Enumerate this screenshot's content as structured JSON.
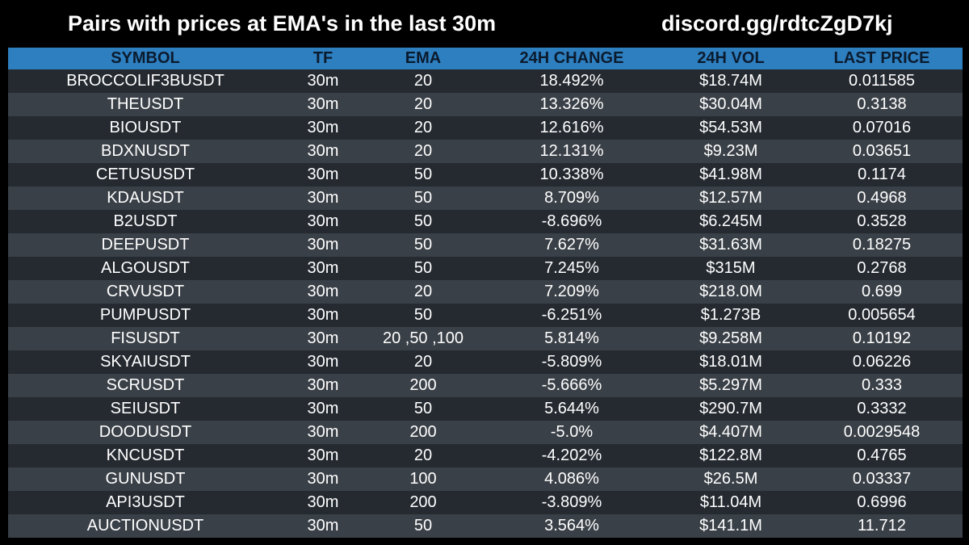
{
  "header": {
    "title": "Pairs with prices at EMA's in the last 30m",
    "discord": "discord.gg/rdtcZgD7kj"
  },
  "colors": {
    "background": "#000000",
    "header_row": "#2e7fc0",
    "row_dark": "#252a31",
    "row_light": "#3a4047",
    "text": "#ffffff"
  },
  "table": {
    "columns": [
      "SYMBOL",
      "TF",
      "EMA",
      "24H CHANGE",
      "24H VOL",
      "LAST PRICE"
    ],
    "rows": [
      [
        "BROCCOLIF3BUSDT",
        "30m",
        "20",
        "18.492%",
        "$18.74M",
        "0.011585"
      ],
      [
        "THEUSDT",
        "30m",
        "20",
        "13.326%",
        "$30.04M",
        "0.3138"
      ],
      [
        "BIOUSDT",
        "30m",
        "20",
        "12.616%",
        "$54.53M",
        "0.07016"
      ],
      [
        "BDXNUSDT",
        "30m",
        "20",
        "12.131%",
        "$9.23M",
        "0.03651"
      ],
      [
        "CETUSUSDT",
        "30m",
        "50",
        "10.338%",
        "$41.98M",
        "0.1174"
      ],
      [
        "KDAUSDT",
        "30m",
        "50",
        "8.709%",
        "$12.57M",
        "0.4968"
      ],
      [
        "B2USDT",
        "30m",
        "50",
        "-8.696%",
        "$6.245M",
        "0.3528"
      ],
      [
        "DEEPUSDT",
        "30m",
        "50",
        "7.627%",
        "$31.63M",
        "0.18275"
      ],
      [
        "ALGOUSDT",
        "30m",
        "50",
        "7.245%",
        "$315M",
        "0.2768"
      ],
      [
        "CRVUSDT",
        "30m",
        "20",
        "7.209%",
        "$218.0M",
        "0.699"
      ],
      [
        "PUMPUSDT",
        "30m",
        "50",
        "-6.251%",
        "$1.273B",
        "0.005654"
      ],
      [
        "FISUSDT",
        "30m",
        "20 ,50 ,100",
        "5.814%",
        "$9.258M",
        "0.10192"
      ],
      [
        "SKYAIUSDT",
        "30m",
        "20",
        "-5.809%",
        "$18.01M",
        "0.06226"
      ],
      [
        "SCRUSDT",
        "30m",
        "200",
        "-5.666%",
        "$5.297M",
        "0.333"
      ],
      [
        "SEIUSDT",
        "30m",
        "50",
        "5.644%",
        "$290.7M",
        "0.3332"
      ],
      [
        "DOODUSDT",
        "30m",
        "200",
        "-5.0%",
        "$4.407M",
        "0.0029548"
      ],
      [
        "KNCUSDT",
        "30m",
        "20",
        "-4.202%",
        "$122.8M",
        "0.4765"
      ],
      [
        "GUNUSDT",
        "30m",
        "100",
        "4.086%",
        "$26.5M",
        "0.03337"
      ],
      [
        "API3USDT",
        "30m",
        "200",
        "-3.809%",
        "$11.04M",
        "0.6996"
      ],
      [
        "AUCTIONUSDT",
        "30m",
        "50",
        "3.564%",
        "$141.1M",
        "11.712"
      ]
    ]
  }
}
